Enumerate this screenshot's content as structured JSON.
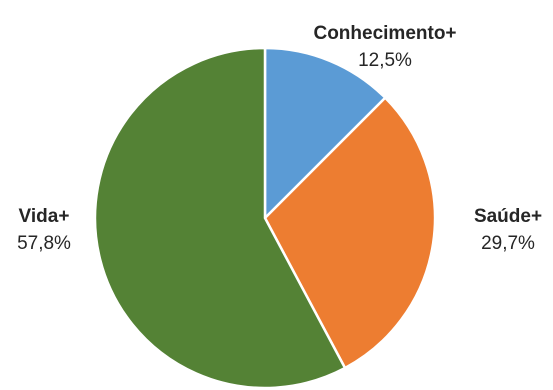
{
  "chart_data": {
    "type": "pie",
    "title": "",
    "start_angle_deg": 0,
    "direction": "clockwise",
    "slices": [
      {
        "name": "Conhecimento+",
        "value": 12.5,
        "label": "12,5%",
        "color": "#5B9BD5"
      },
      {
        "name": "Saúde+",
        "value": 29.7,
        "label": "29,7%",
        "color": "#ED7D31"
      },
      {
        "name": "Vida+",
        "value": 57.8,
        "label": "57,8%",
        "color": "#548235"
      }
    ],
    "legend": "none",
    "data_labels": "outside"
  }
}
